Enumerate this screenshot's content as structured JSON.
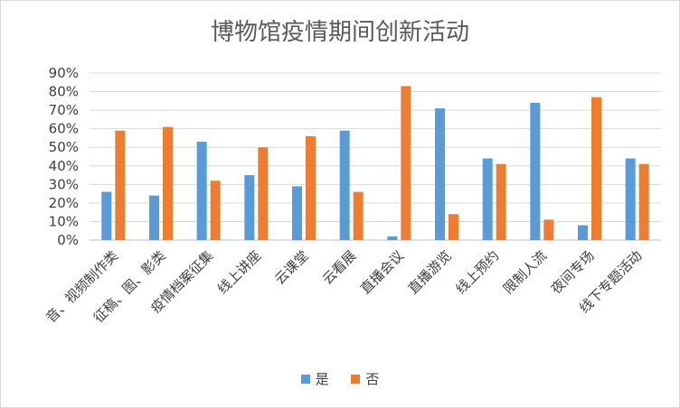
{
  "chart_data": {
    "type": "bar",
    "title": "博物馆疫情期间创新活动",
    "categories": [
      "音、视频制作类",
      "征稿、图、影类",
      "疫情档案征集",
      "线上讲座",
      "云课堂",
      "云看展",
      "直播会议",
      "直播游览",
      "线上预约",
      "限制人流",
      "夜间专场",
      "线下专题活动"
    ],
    "series": [
      {
        "name": "是",
        "color": "#5b9bd5",
        "values": [
          26,
          24,
          53,
          35,
          29,
          59,
          2,
          71,
          44,
          74,
          8,
          44
        ]
      },
      {
        "name": "否",
        "color": "#ed7d31",
        "values": [
          59,
          61,
          32,
          50,
          56,
          26,
          83,
          14,
          41,
          11,
          77,
          41
        ]
      }
    ],
    "ylim": [
      0,
      90
    ],
    "yticks": [
      "0%",
      "10%",
      "20%",
      "30%",
      "40%",
      "50%",
      "60%",
      "70%",
      "80%",
      "90%"
    ],
    "grid": true,
    "legend_position": "bottom"
  }
}
